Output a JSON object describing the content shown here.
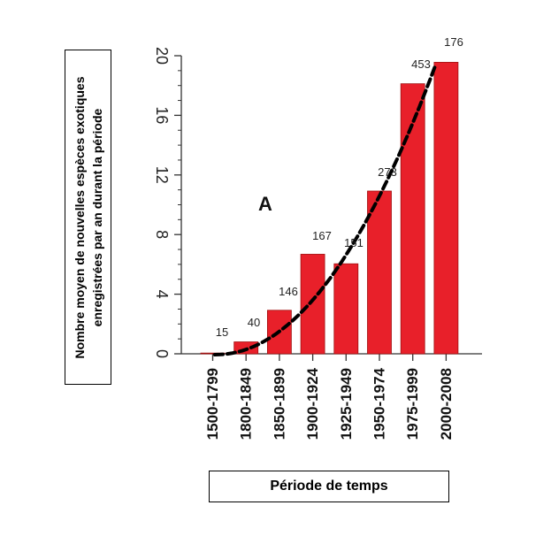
{
  "colors": {
    "bar": "#e8202a",
    "bar_edge": "#a01010",
    "axis": "#333333",
    "trend": "#000000"
  },
  "chart_data": {
    "type": "bar",
    "categories": [
      "1500-1799",
      "1800-1849",
      "1850-1899",
      "1900-1924",
      "1925-1949",
      "1950-1974",
      "1975-1999",
      "2000-2008"
    ],
    "values": [
      0.05,
      0.8,
      2.92,
      6.68,
      6.04,
      10.92,
      18.12,
      19.56
    ],
    "data_labels": [
      "15",
      "40",
      "146",
      "167",
      "151",
      "273",
      "453",
      "176"
    ],
    "y_ticks": [
      0,
      4,
      8,
      12,
      16,
      20
    ],
    "ylim": [
      0,
      20
    ],
    "panel_label": "A",
    "trend_line": "dashed polynomial fit",
    "xlabel": "Période de temps",
    "ylabel": "Nombre moyen de nouvelles espèces exotiques enregistrées par an durant la période",
    "grid": false
  }
}
